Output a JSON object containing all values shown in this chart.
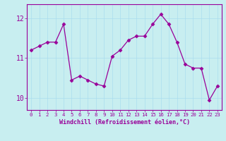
{
  "x": [
    0,
    1,
    2,
    3,
    4,
    5,
    6,
    7,
    8,
    9,
    10,
    11,
    12,
    13,
    14,
    15,
    16,
    17,
    18,
    19,
    20,
    21,
    22,
    23
  ],
  "y": [
    11.2,
    11.3,
    11.4,
    11.4,
    11.85,
    10.45,
    10.55,
    10.45,
    10.35,
    10.3,
    11.05,
    11.2,
    11.45,
    11.55,
    11.55,
    11.85,
    12.1,
    11.85,
    11.4,
    10.85,
    10.75,
    10.75,
    9.95,
    10.3
  ],
  "line_color": "#990099",
  "marker": "D",
  "marker_size": 2.5,
  "bg_color": "#c8eef0",
  "grid_color": "#aaddee",
  "xlabel": "Windchill (Refroidissement éolien,°C)",
  "ylim": [
    9.7,
    12.35
  ],
  "xlim": [
    -0.5,
    23.5
  ],
  "yticks": [
    10,
    11,
    12
  ],
  "tick_color": "#990099",
  "label_color": "#990099",
  "spine_color": "#990099",
  "xlabel_fontsize": 6.0,
  "ytick_fontsize": 7.0,
  "xtick_fontsize": 5.2
}
